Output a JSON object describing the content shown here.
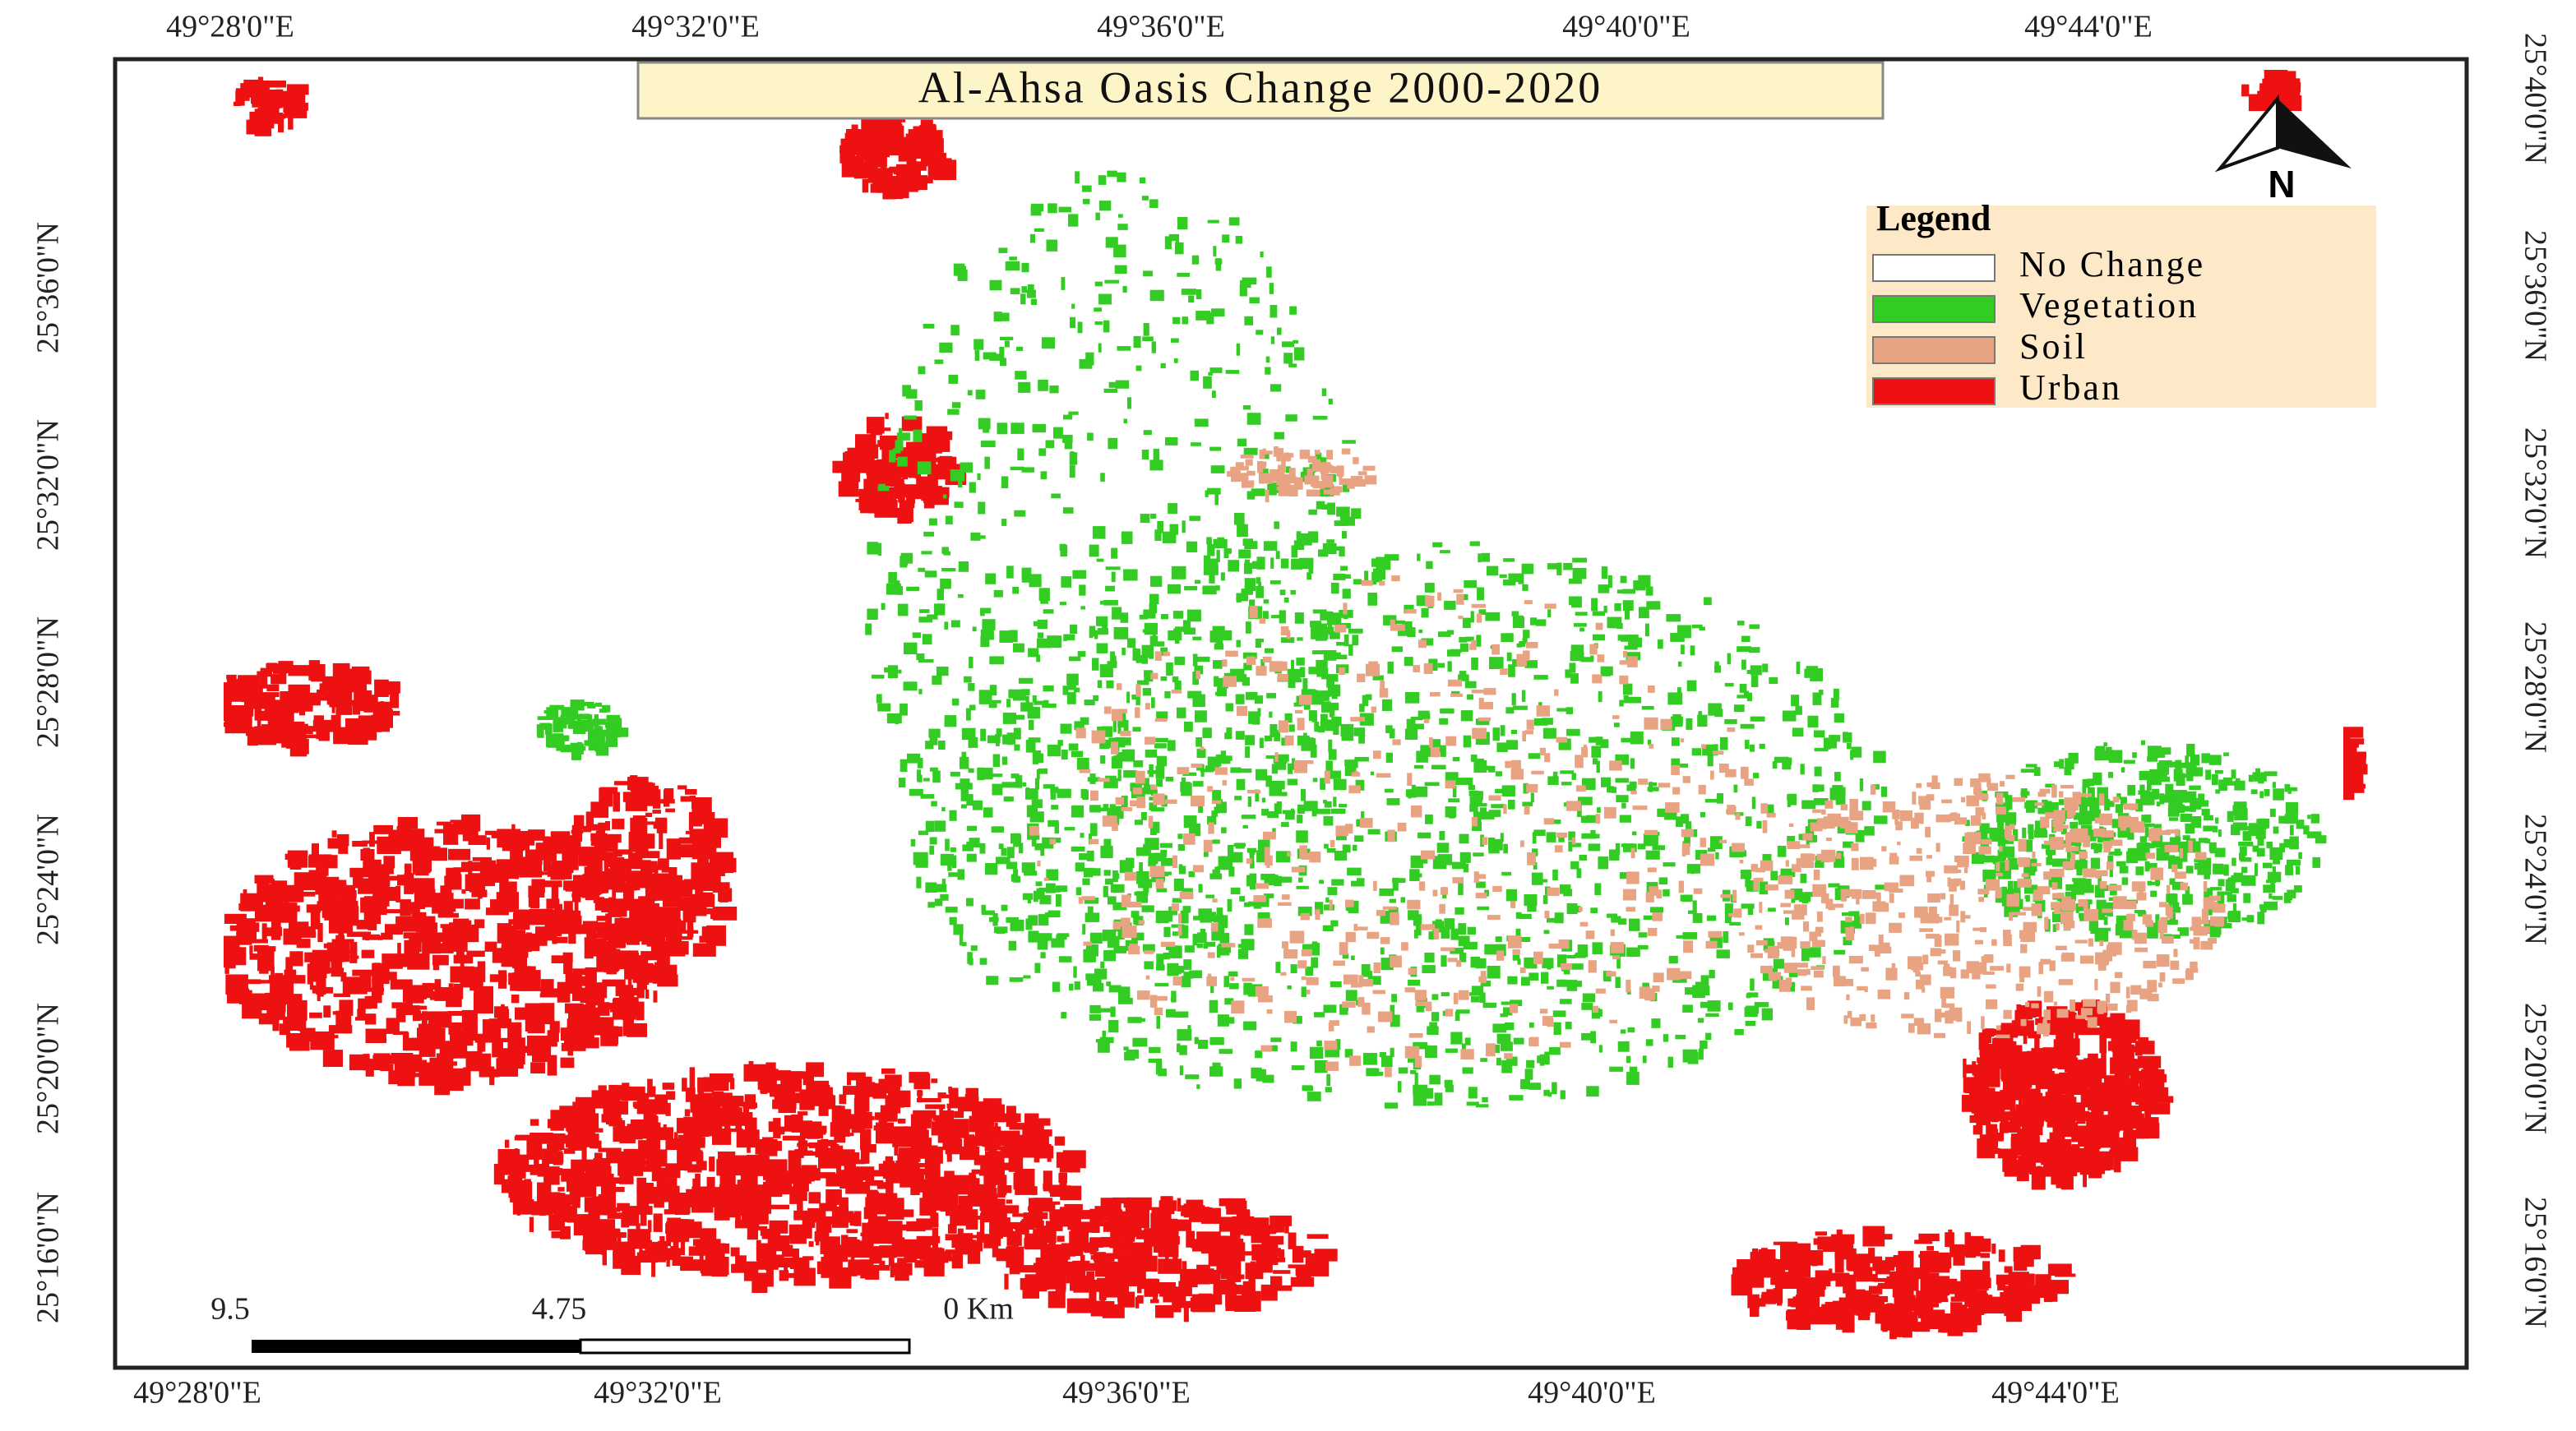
{
  "title": "Al-Ahsa Oasis Change 2000-2020",
  "legend": {
    "title": "Legend",
    "items": [
      {
        "label": "No Change",
        "color": "#ffffff"
      },
      {
        "label": "Vegetation",
        "color": "#33cc22"
      },
      {
        "label": "Soil",
        "color": "#e8a482"
      },
      {
        "label": "Urban",
        "color": "#ee1111"
      }
    ]
  },
  "north": "N",
  "top_labels": [
    "49°28'0\"E",
    "49°32'0\"E",
    "49°36'0\"E",
    "49°40'0\"E",
    "49°44'0\"E"
  ],
  "bottom_labels": [
    "49°28'0\"E",
    "49°32'0\"E",
    "49°36'0\"E",
    "49°40'0\"E",
    "49°44'0\"E"
  ],
  "left_labels": [
    "25°36'0\"N",
    "25°32'0\"N",
    "25°28'0\"N",
    "25°24'0\"N",
    "25°20'0\"N",
    "25°16'0\"N"
  ],
  "right_labels": [
    "25°40'0\"N",
    "25°36'0\"N",
    "25°32'0\"N",
    "25°28'0\"N",
    "25°24'0\"N",
    "25°20'0\"N",
    "25°16'0\"N"
  ],
  "scale_bar": {
    "labels": [
      "9.5",
      "4.75",
      "0 Km"
    ]
  }
}
